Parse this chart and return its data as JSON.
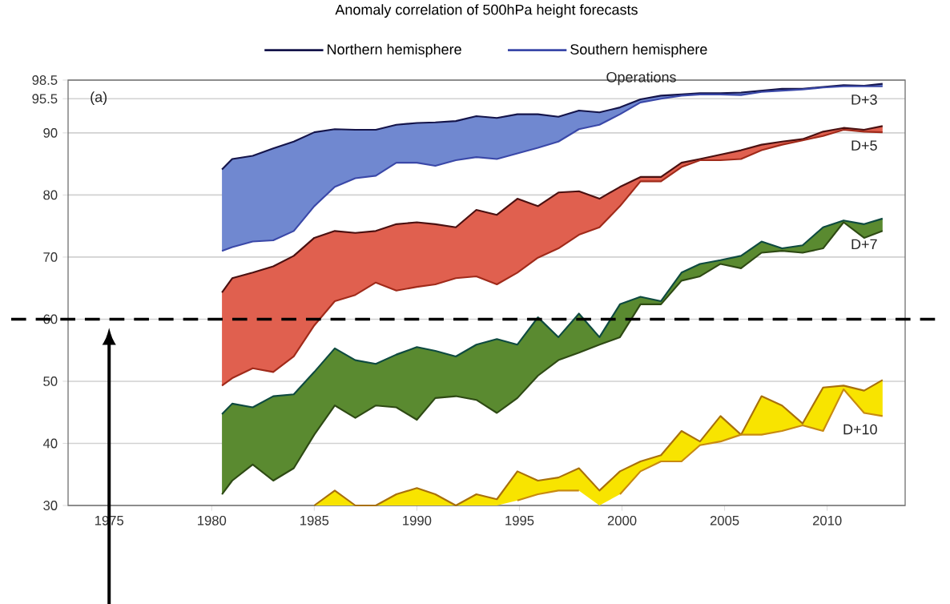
{
  "chart_data": {
    "type": "line",
    "title": "Anomaly correlation of 500hPa height forecasts",
    "x": [
      1980.5,
      1981,
      1982,
      1983,
      1984,
      1985,
      1986,
      1987,
      1988,
      1989,
      1990,
      1990.9,
      1991.9,
      1992.9,
      1993.9,
      1994.9,
      1995.9,
      1996.9,
      1997.9,
      1998.9,
      1999.9,
      2000.9,
      2001.9,
      2002.9,
      2003.8,
      2004.8,
      2005.8,
      2006.8,
      2007.8,
      2008.8,
      2009.8,
      2010.8,
      2011.8,
      2012.7
    ],
    "series": [
      {
        "name": "Northern hemisphere",
        "color": "#14144a",
        "values": [
          84.1,
          85.8,
          86.3,
          87.5,
          88.6,
          90.1,
          90.6,
          90.5,
          90.5,
          91.3,
          91.6,
          91.7,
          91.9,
          92.7,
          92.4,
          93.0,
          93.0,
          92.6,
          93.6,
          93.3,
          94.1,
          95.4,
          96.0,
          96.2,
          96.4,
          96.4,
          96.5,
          96.8,
          97.1,
          97.1,
          97.4,
          97.7,
          97.6,
          97.9
        ],
        "upper": [
          84.1,
          85.8,
          86.3,
          87.5,
          88.6,
          90.1,
          90.6,
          90.5,
          90.5,
          91.3,
          91.6,
          91.7,
          91.9,
          92.7,
          92.4,
          93.0,
          93.0,
          92.6,
          93.6,
          93.3,
          94.1,
          95.4,
          96.0,
          96.2,
          96.4,
          96.4,
          96.5,
          96.8,
          97.1,
          97.1,
          97.4,
          97.7,
          97.6,
          97.9
        ],
        "lower": [
          71.0,
          71.6,
          72.5,
          72.7,
          74.2,
          78.2,
          81.3,
          82.7,
          83.1,
          85.2,
          85.2,
          84.7,
          85.6,
          86.1,
          85.8,
          86.7,
          87.6,
          88.6,
          90.6,
          91.3,
          93.0,
          94.9,
          95.5,
          96.0,
          96.2,
          96.2,
          96.1,
          96.6,
          96.8,
          97.0,
          97.3,
          97.5,
          97.5,
          97.5
        ]
      },
      {
        "name": "Southern hemisphere",
        "color": "#3a48a8",
        "values": [
          71.0,
          71.6,
          72.5,
          72.7,
          74.2,
          78.2,
          81.3,
          82.7,
          83.1,
          85.2,
          85.2,
          84.7,
          85.6,
          86.1,
          85.8,
          86.7,
          87.6,
          88.6,
          90.6,
          91.3,
          93.0,
          94.9,
          95.5,
          96.0,
          96.2,
          96.2,
          96.1,
          96.6,
          96.8,
          97.0,
          97.3,
          97.5,
          97.5,
          97.5
        ]
      },
      {
        "color": "#4a1010",
        "values": [
          64.3,
          66.6,
          67.5,
          68.5,
          70.2,
          73.1,
          74.2,
          73.9,
          74.2,
          75.3,
          75.6,
          75.3,
          74.8,
          77.6,
          76.8,
          79.4,
          78.2,
          80.4,
          80.6,
          79.4,
          81.3,
          82.9,
          82.9,
          85.2,
          85.8,
          86.5,
          87.2,
          88.1,
          88.6,
          89.0,
          90.2,
          90.8,
          90.5,
          91.1
        ],
        "upper": [
          64.3,
          66.6,
          67.5,
          68.5,
          70.2,
          73.1,
          74.2,
          73.9,
          74.2,
          75.3,
          75.6,
          75.3,
          74.8,
          77.6,
          76.8,
          79.4,
          78.2,
          80.4,
          80.6,
          79.4,
          81.3,
          82.9,
          82.9,
          85.2,
          85.8,
          86.5,
          87.2,
          88.1,
          88.6,
          89.0,
          90.2,
          90.8,
          90.5,
          91.1
        ],
        "lower": [
          49.3,
          50.5,
          52.1,
          51.5,
          54.0,
          59.0,
          62.9,
          63.9,
          65.9,
          64.6,
          65.2,
          65.6,
          66.6,
          66.9,
          65.6,
          67.5,
          69.9,
          71.4,
          73.6,
          74.8,
          78.2,
          82.2,
          82.2,
          84.5,
          85.6,
          85.6,
          85.8,
          87.2,
          88.1,
          88.8,
          89.5,
          90.5,
          90.2,
          90.1
        ]
      },
      {
        "color": "#a02a1a",
        "values": [
          49.3,
          50.5,
          52.1,
          51.5,
          54.0,
          59.0,
          62.9,
          63.9,
          65.9,
          64.6,
          65.2,
          65.6,
          66.6,
          66.9,
          65.6,
          67.5,
          69.9,
          71.4,
          73.6,
          74.8,
          78.2,
          82.2,
          82.2,
          84.5,
          85.6,
          85.6,
          85.8,
          87.2,
          88.1,
          88.8,
          89.5,
          90.5,
          90.2,
          90.1
        ]
      },
      {
        "color": "#0e4a40",
        "values": [
          44.7,
          46.4,
          45.8,
          47.6,
          47.9,
          51.5,
          55.3,
          53.4,
          52.8,
          54.3,
          55.5,
          54.9,
          54.0,
          55.9,
          56.8,
          55.9,
          60.3,
          57.1,
          60.9,
          57.1,
          62.4,
          63.6,
          62.9,
          67.5,
          68.9,
          69.5,
          70.2,
          72.5,
          71.4,
          71.9,
          74.8,
          75.9,
          75.3,
          76.2
        ],
        "upper": [
          44.7,
          46.4,
          45.8,
          47.6,
          47.9,
          51.5,
          55.3,
          53.4,
          52.8,
          54.3,
          55.5,
          54.9,
          54.0,
          55.9,
          56.8,
          55.9,
          60.3,
          57.1,
          60.9,
          57.1,
          62.4,
          63.6,
          62.9,
          67.5,
          68.9,
          69.5,
          70.2,
          72.5,
          71.4,
          71.9,
          74.8,
          75.9,
          75.3,
          76.2
        ],
        "lower": [
          31.8,
          34.0,
          36.6,
          34.0,
          36.0,
          41.4,
          46.1,
          44.1,
          46.1,
          45.8,
          43.8,
          47.3,
          47.6,
          47.0,
          44.9,
          47.3,
          50.9,
          53.4,
          54.6,
          55.9,
          57.1,
          62.4,
          62.4,
          66.2,
          66.9,
          68.9,
          68.2,
          70.7,
          71.0,
          70.7,
          71.4,
          75.6,
          73.1,
          74.2
        ]
      },
      {
        "color": "#2e4a14",
        "values": [
          31.8,
          34.0,
          36.6,
          34.0,
          36.0,
          41.4,
          46.1,
          44.1,
          46.1,
          45.8,
          43.8,
          47.3,
          47.6,
          47.0,
          44.9,
          47.3,
          50.9,
          53.4,
          54.6,
          55.9,
          57.1,
          62.4,
          62.4,
          66.2,
          66.9,
          68.9,
          68.2,
          70.7,
          71.0,
          70.7,
          71.4,
          75.6,
          73.1,
          74.2
        ]
      },
      {
        "color": "#a8700c",
        "values": [
          null,
          null,
          null,
          null,
          null,
          30,
          32.4,
          30,
          30,
          31.8,
          32.8,
          31.8,
          30,
          31.8,
          31.0,
          35.5,
          34.0,
          34.5,
          36.0,
          32.4,
          35.5,
          37.1,
          38.1,
          42.0,
          40.3,
          44.4,
          41.4,
          47.6,
          46.1,
          43.2,
          49.0,
          49.3,
          48.5,
          50.2
        ],
        "upper": [
          null,
          null,
          null,
          null,
          null,
          30,
          32.4,
          30,
          30,
          31.8,
          32.8,
          31.8,
          30,
          31.8,
          31.0,
          35.5,
          34.0,
          34.5,
          36.0,
          32.4,
          35.5,
          37.1,
          38.1,
          42.0,
          40.3,
          44.4,
          41.4,
          47.6,
          46.1,
          43.2,
          49.0,
          49.3,
          48.5,
          50.2
        ],
        "lower": [
          null,
          null,
          null,
          null,
          null,
          30,
          30,
          30,
          30,
          30,
          30,
          30,
          30,
          30,
          30,
          30.8,
          31.8,
          32.4,
          32.4,
          30,
          31.8,
          35.5,
          37.1,
          37.1,
          39.7,
          40.3,
          41.4,
          41.4,
          42.0,
          42.9,
          42.0,
          48.7,
          44.9,
          44.4
        ]
      },
      {
        "color": "#c88a10",
        "values": [
          null,
          null,
          null,
          null,
          null,
          null,
          null,
          null,
          null,
          null,
          null,
          null,
          null,
          null,
          null,
          30.8,
          31.8,
          32.4,
          32.4,
          null,
          31.8,
          35.5,
          37.1,
          37.1,
          39.7,
          40.3,
          41.4,
          41.4,
          42.0,
          42.9,
          42.0,
          48.7,
          44.9,
          44.4
        ]
      }
    ],
    "colors": [
      "#7088d0",
      "#e0604f",
      "#5a8a30",
      "#f8e400"
    ],
    "xlim": [
      1973,
      2013.8
    ],
    "xticks": [
      1975,
      1980,
      1985,
      1990,
      1995,
      2000,
      2005,
      2010
    ],
    "ylim": [
      30,
      98.5
    ],
    "yticks": [
      30,
      40,
      50,
      60,
      70,
      80,
      90,
      95.5,
      98.5
    ],
    "grid": "y",
    "legend": "top",
    "ref_lines": [
      {
        "axis": "y",
        "value": 60,
        "color": "#000000",
        "line_style": "dashed"
      }
    ],
    "annotations": [
      "(a)",
      "Operations",
      "D+3",
      "D+5",
      "D+7",
      "D+10"
    ]
  }
}
